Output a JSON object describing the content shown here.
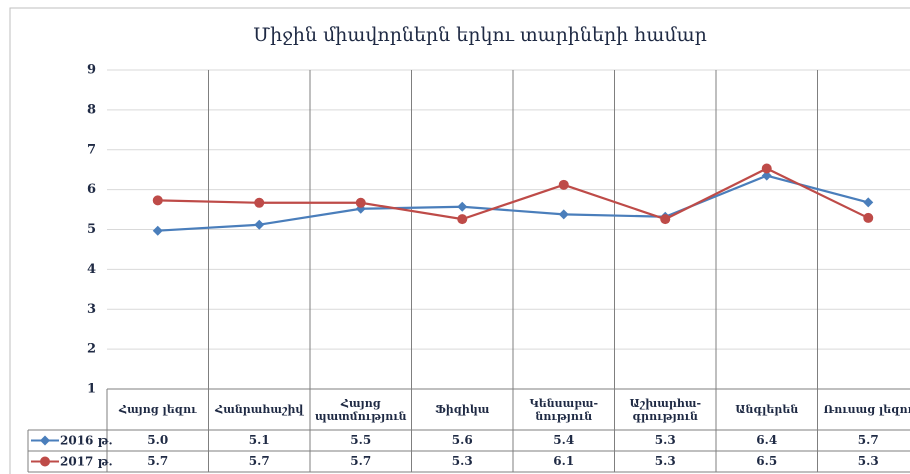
{
  "chart_data": {
    "type": "line",
    "title": "Միջին միավորներն երկու տարիների համար",
    "categories": [
      "Հայոց լեզու",
      "Հանրահաշիվ",
      "Հայոց\nպատմություն",
      "Ֆիզիկա",
      "Կենսաբա-\nնություն",
      "Աշխարհա-\nգրություն",
      "Անգլերեն",
      "Ռուսաց լեզու"
    ],
    "series": [
      {
        "name": "2016 թ.",
        "color": "#4a7ebb",
        "marker": "diamond",
        "values": [
          4.97,
          5.12,
          5.52,
          5.57,
          5.38,
          5.32,
          6.35,
          5.68
        ],
        "value_labels": [
          "5.0",
          "5.1",
          "5.5",
          "5.6",
          "5.4",
          "5.3",
          "6.4",
          "5.7"
        ]
      },
      {
        "name": "2017 թ.",
        "color": "#be4b48",
        "marker": "circle",
        "values": [
          5.73,
          5.67,
          5.67,
          5.26,
          6.12,
          5.26,
          6.53,
          5.29
        ],
        "value_labels": [
          "5.7",
          "5.7",
          "5.7",
          "5.3",
          "6.1",
          "5.3",
          "6.5",
          "5.3"
        ]
      }
    ],
    "ylim": [
      1,
      9
    ],
    "yticks": [
      1,
      2,
      3,
      4,
      5,
      6,
      7,
      8,
      9
    ],
    "grid": true
  }
}
